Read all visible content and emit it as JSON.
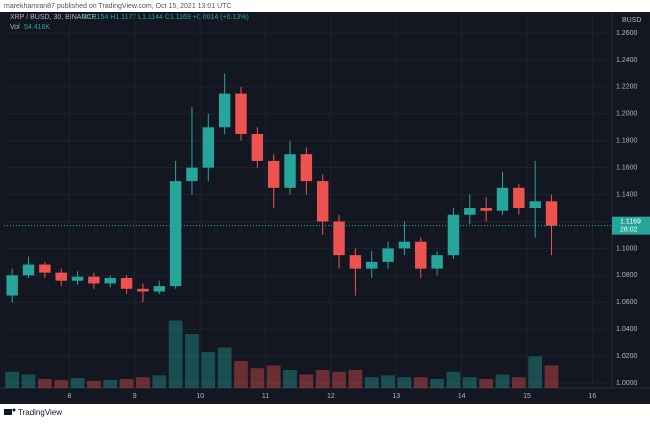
{
  "header": {
    "published": "marekhamran87 published on TradingView.com, Oct 15, 2021 13:01 UTC"
  },
  "chart_data": {
    "type": "candlestick",
    "symbol": "XRP / BUSD, 30, BINANCE",
    "ohlc_legend": "O1.1154 H1.1177 L1.1144 C1.1169 +0.0014 (+0.13%)",
    "volume_legend_name": "Vol",
    "volume_legend_value": "54.416K",
    "currency": "BUSD",
    "up_color": "#26a69a",
    "down_color": "#ef5350",
    "x": [
      7.125,
      7.375,
      7.625,
      7.875,
      8.125,
      8.375,
      8.625,
      8.875,
      9.125,
      9.375,
      9.625,
      9.875,
      10.125,
      10.375,
      10.625,
      10.875,
      11.125,
      11.375,
      11.625,
      11.875,
      12.125,
      12.375,
      12.625,
      12.875,
      13.125,
      13.375,
      13.625,
      13.875,
      14.125,
      14.375,
      14.625,
      14.875,
      15.125,
      15.375
    ],
    "open": [
      1.065,
      1.08,
      1.088,
      1.082,
      1.076,
      1.079,
      1.074,
      1.078,
      1.07,
      1.068,
      1.072,
      1.15,
      1.16,
      1.19,
      1.215,
      1.185,
      1.165,
      1.145,
      1.17,
      1.15,
      1.12,
      1.095,
      1.085,
      1.09,
      1.1,
      1.105,
      1.085,
      1.095,
      1.125,
      1.13,
      1.128,
      1.145,
      1.13,
      1.135
    ],
    "high": [
      1.085,
      1.094,
      1.09,
      1.085,
      1.083,
      1.082,
      1.08,
      1.08,
      1.074,
      1.076,
      1.165,
      1.205,
      1.2,
      1.23,
      1.22,
      1.19,
      1.17,
      1.18,
      1.175,
      1.155,
      1.125,
      1.1,
      1.098,
      1.105,
      1.12,
      1.108,
      1.098,
      1.13,
      1.14,
      1.138,
      1.157,
      1.148,
      1.165,
      1.14
    ],
    "low": [
      1.06,
      1.078,
      1.078,
      1.072,
      1.073,
      1.07,
      1.071,
      1.066,
      1.06,
      1.066,
      1.07,
      1.14,
      1.15,
      1.185,
      1.18,
      1.16,
      1.13,
      1.14,
      1.14,
      1.11,
      1.085,
      1.065,
      1.078,
      1.085,
      1.095,
      1.078,
      1.08,
      1.092,
      1.118,
      1.12,
      1.125,
      1.125,
      1.108,
      1.095
    ],
    "close": [
      1.08,
      1.088,
      1.082,
      1.076,
      1.079,
      1.074,
      1.078,
      1.07,
      1.068,
      1.072,
      1.15,
      1.16,
      1.19,
      1.215,
      1.185,
      1.165,
      1.145,
      1.17,
      1.15,
      1.12,
      1.095,
      1.085,
      1.09,
      1.1,
      1.105,
      1.085,
      1.095,
      1.125,
      1.13,
      1.128,
      1.145,
      1.13,
      1.135,
      1.1169
    ],
    "volume": [
      18,
      15,
      10,
      9,
      11,
      8,
      9,
      10,
      12,
      14,
      75,
      60,
      40,
      45,
      30,
      22,
      25,
      20,
      15,
      20,
      18,
      20,
      12,
      14,
      12,
      12,
      10,
      18,
      12,
      10,
      15,
      12,
      35,
      25
    ],
    "volume_lim": [
      0,
      100
    ],
    "xlim": [
      7.0,
      16.3
    ],
    "xticks": [
      8,
      9,
      10,
      11,
      12,
      13,
      14,
      15,
      16
    ],
    "ylim": [
      0.9963,
      1.2734
    ],
    "yticks": [
      {
        "value": 1.0,
        "label": "1.0000"
      },
      {
        "value": 1.02,
        "label": "1.0200"
      },
      {
        "value": 1.04,
        "label": "1.0400"
      },
      {
        "value": 1.06,
        "label": "1.0600"
      },
      {
        "value": 1.08,
        "label": "1.0800"
      },
      {
        "value": 1.1,
        "label": "1.1000"
      },
      {
        "value": 1.12,
        "label": "1.1200"
      },
      {
        "value": 1.14,
        "label": "1.1400"
      },
      {
        "value": 1.16,
        "label": "1.1600"
      },
      {
        "value": 1.18,
        "label": "1.1800"
      },
      {
        "value": 1.2,
        "label": "1.2000"
      },
      {
        "value": 1.22,
        "label": "1.2200"
      },
      {
        "value": 1.24,
        "label": "1.2400"
      },
      {
        "value": 1.26,
        "label": "1.2600"
      }
    ],
    "last_price": {
      "value": 1.1169,
      "label": "1.1169"
    },
    "countdown": "28:02"
  },
  "footer": {
    "brand": "TradingView"
  }
}
